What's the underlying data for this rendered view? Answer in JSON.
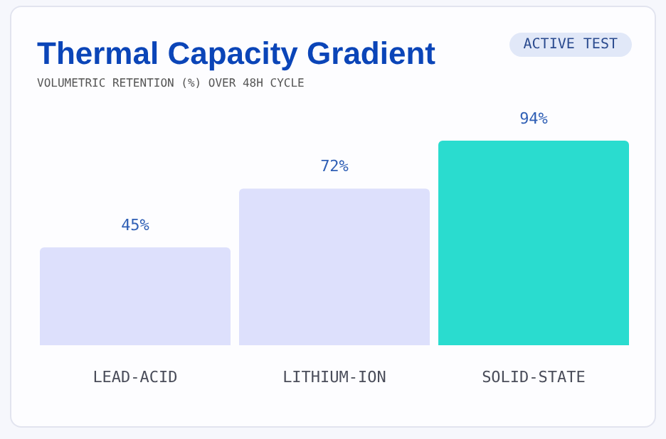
{
  "chart_data": {
    "type": "bar",
    "title": "Thermal Capacity Gradient",
    "subtitle": "VOLUMETRIC RETENTION (%) OVER 48H CYCLE",
    "annotations": [
      "ACTIVE TEST"
    ],
    "categories": [
      "LEAD-ACID",
      "LITHIUM-ION",
      "SOLID-STATE"
    ],
    "values": [
      45,
      72,
      94
    ],
    "value_labels": [
      "45%",
      "72%",
      "94%"
    ],
    "colors": [
      "#dde0fc",
      "#dde0fc",
      "#2adccf"
    ],
    "grid": false
  }
}
